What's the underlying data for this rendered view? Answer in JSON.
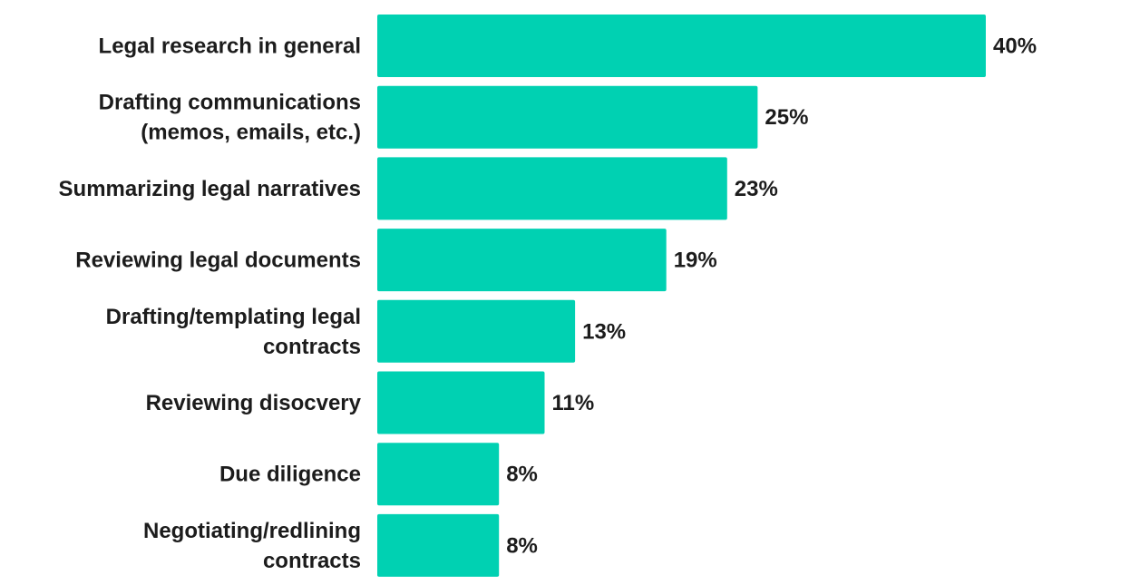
{
  "chart_data": {
    "type": "bar",
    "orientation": "horizontal",
    "categories": [
      [
        "Legal research in general"
      ],
      [
        "Drafting communications",
        "(memos, emails, etc.)"
      ],
      [
        "Summarizing legal narratives"
      ],
      [
        "Reviewing legal documents"
      ],
      [
        "Drafting/templating legal",
        "contracts"
      ],
      [
        "Reviewing disocvery"
      ],
      [
        "Due diligence"
      ],
      [
        "Negotiating/redlining",
        "contracts"
      ]
    ],
    "values": [
      40,
      25,
      23,
      19,
      13,
      11,
      8,
      8
    ],
    "value_labels": [
      "40%",
      "25%",
      "23%",
      "19%",
      "13%",
      "11%",
      "8%",
      "8%"
    ],
    "unit": "%",
    "xlim": [
      0,
      40
    ],
    "grid": false,
    "legend": "none",
    "bar_color": "#00d1b2",
    "text_color": "#1c1c1c"
  }
}
